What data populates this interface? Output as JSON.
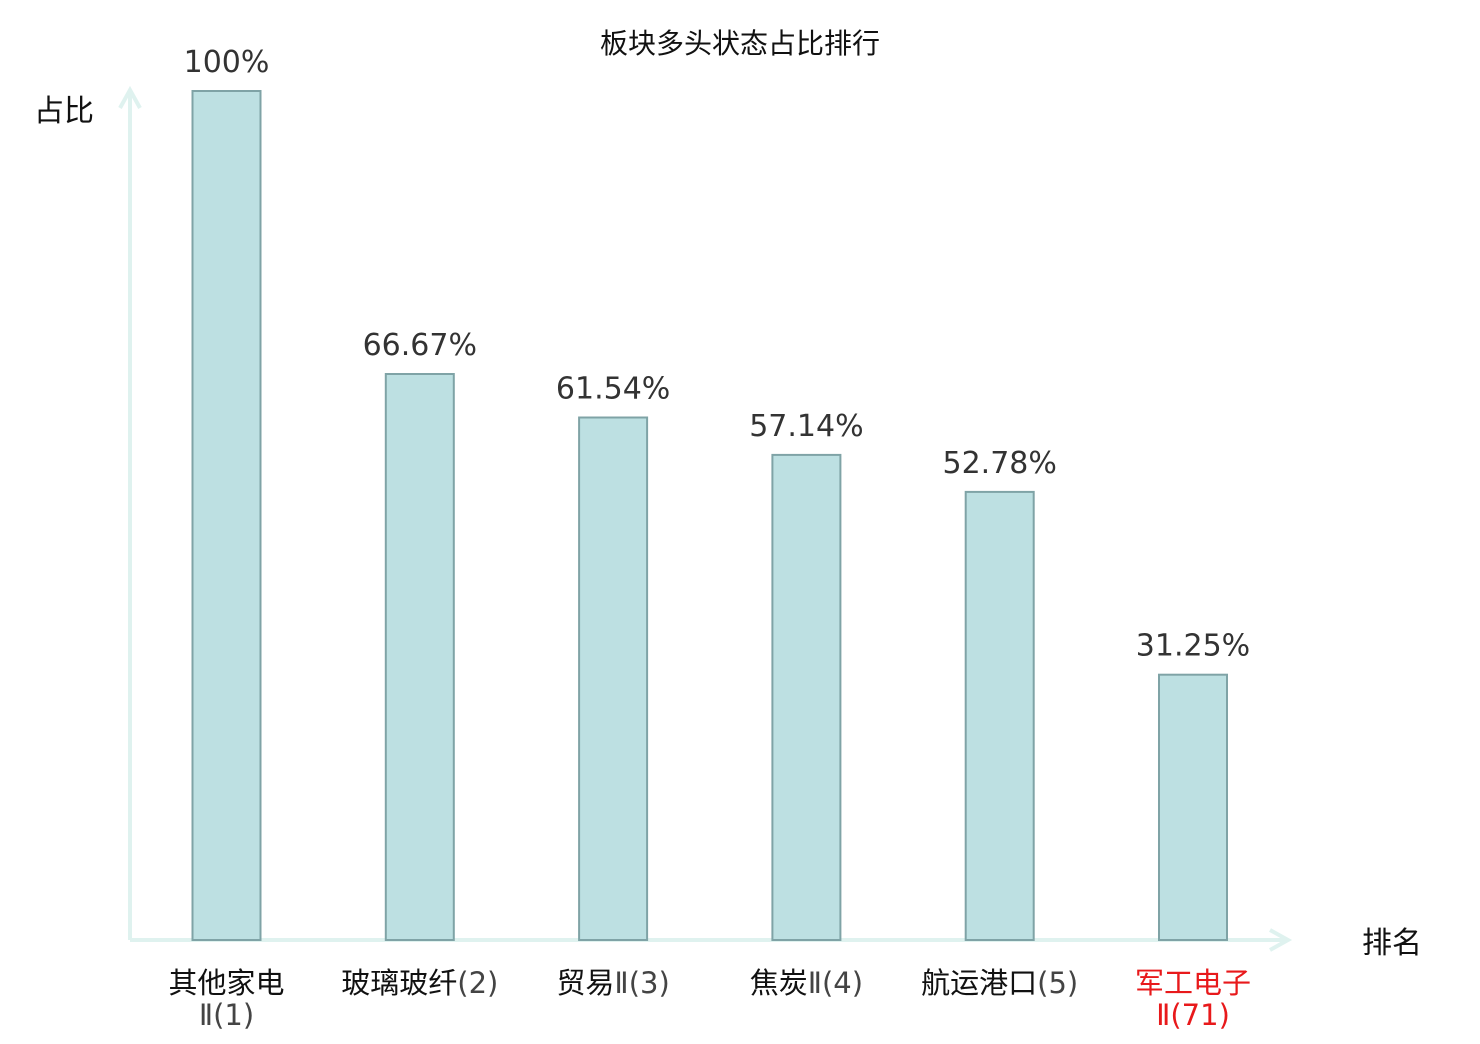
{
  "chart_data": {
    "type": "bar",
    "title": "板块多头状态占比排行",
    "ylabel": "占比",
    "xlabel": "排名",
    "ylim": [
      0,
      100
    ],
    "grid": false,
    "categories": [
      {
        "name": "其他家电",
        "rank": "Ⅱ(1)",
        "name_inline": false,
        "highlight": false
      },
      {
        "name": "玻璃玻纤",
        "rank": "(2)",
        "name_inline": true,
        "highlight": false
      },
      {
        "name": "贸易",
        "rank": "Ⅱ(3)",
        "name_inline": true,
        "highlight": false
      },
      {
        "name": "焦炭",
        "rank": "Ⅱ(4)",
        "name_inline": true,
        "highlight": false
      },
      {
        "name": "航运港口",
        "rank": "(5)",
        "name_inline": true,
        "highlight": false
      },
      {
        "name": "军工电子",
        "rank": "Ⅱ(71)",
        "name_inline": false,
        "highlight": true
      }
    ],
    "values": [
      100,
      66.67,
      61.54,
      57.14,
      52.78,
      31.25
    ],
    "value_labels": [
      "100%",
      "66.67%",
      "61.54%",
      "57.14%",
      "52.78%",
      "31.25%"
    ]
  },
  "colors": {
    "bar_fill": "#bde0e2",
    "bar_stroke": "#7fa3a6",
    "axis": "#dff2ef",
    "value_label": "#333333",
    "category_label": "#111111",
    "rank_label": "#444444",
    "highlight": "#e8191b",
    "title": "#111111"
  }
}
